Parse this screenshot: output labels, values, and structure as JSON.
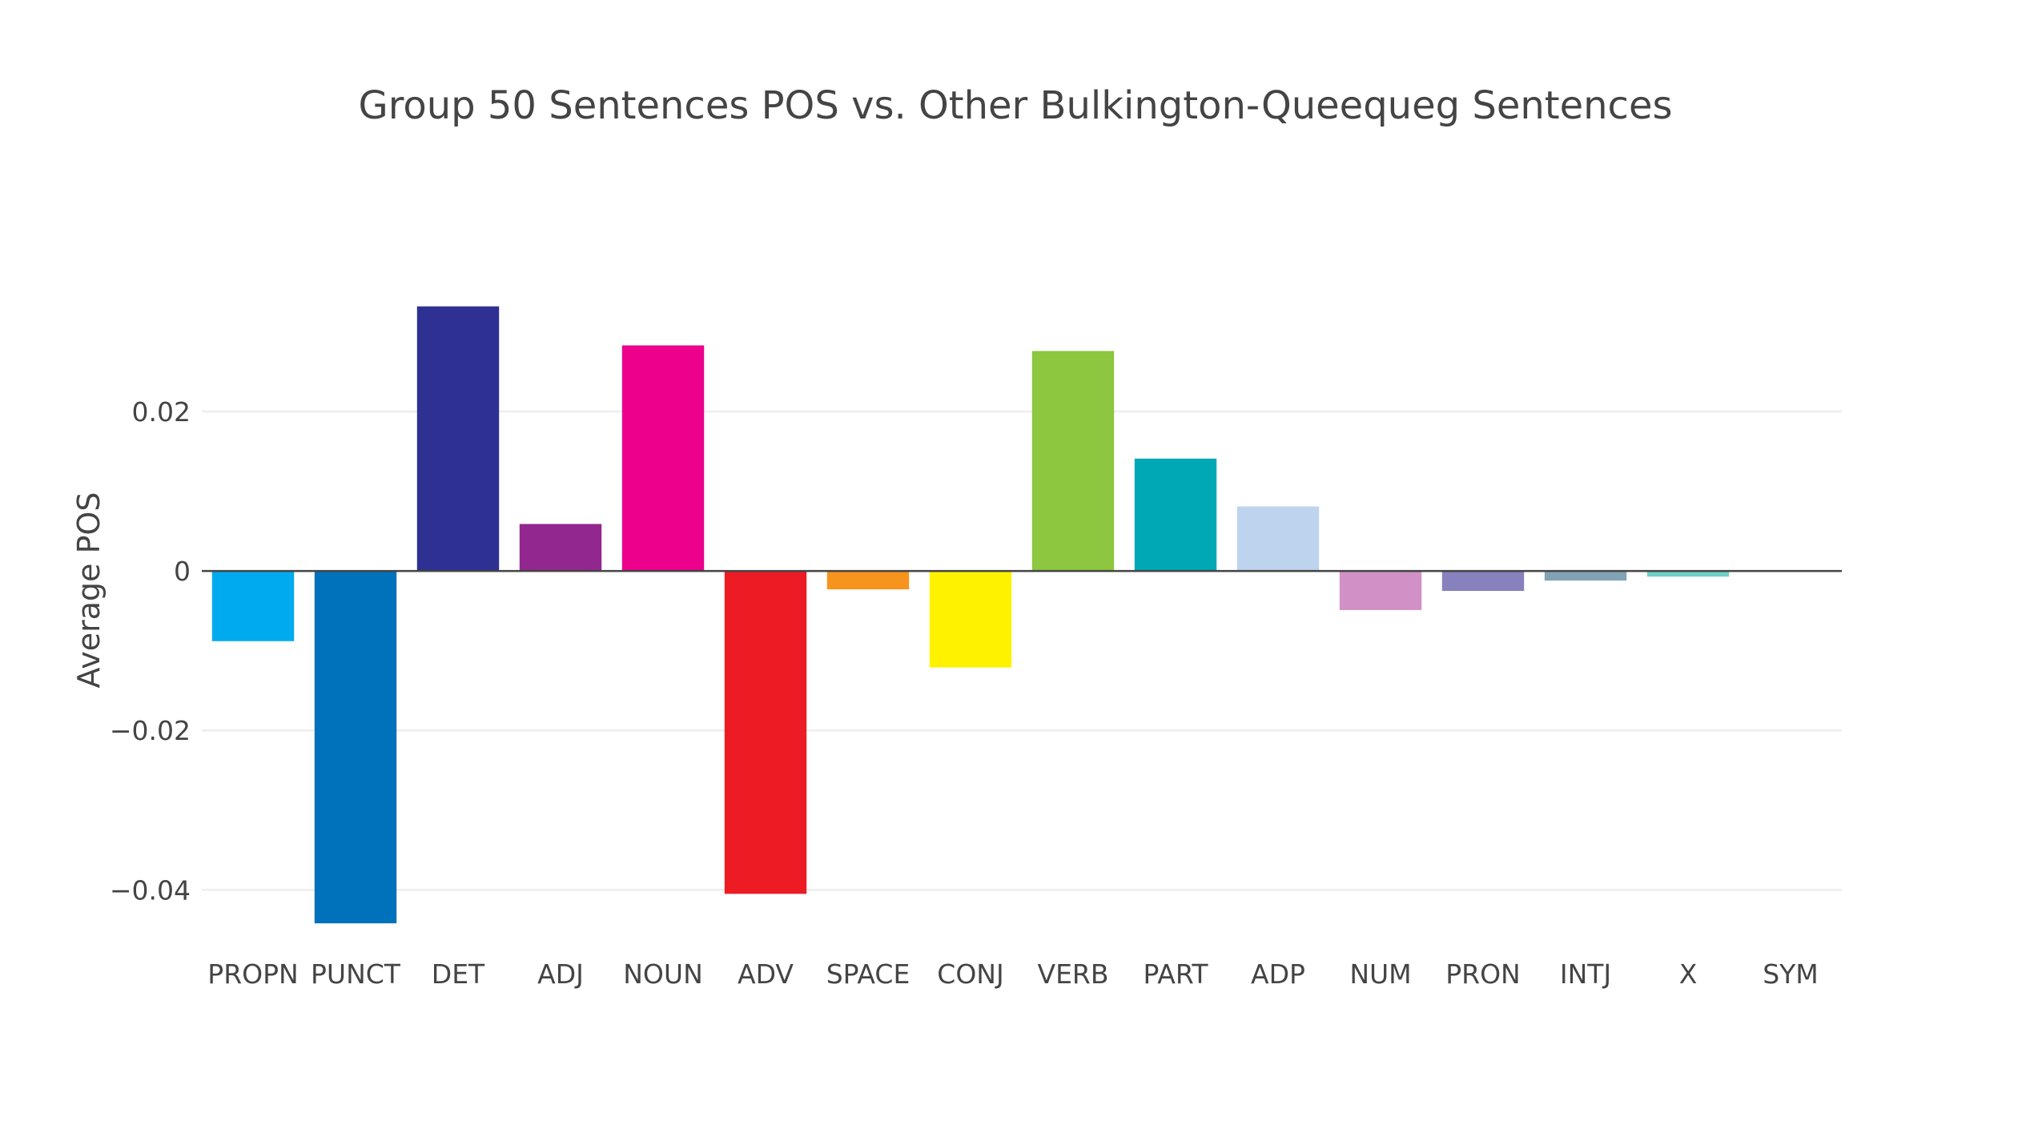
{
  "chart_data": {
    "type": "bar",
    "title": "Group 50 Sentences POS vs. Other Bulkington-Queequeg Sentences",
    "xlabel": "",
    "ylabel": "Average POS",
    "ylim": [
      -0.0475,
      0.0415
    ],
    "yticks": [
      -0.04,
      -0.02,
      0,
      0.02
    ],
    "ytick_labels": [
      "−0.04",
      "−0.02",
      "0",
      "0.02"
    ],
    "grid": true,
    "legend": "none",
    "categories": [
      "PROPN",
      "PUNCT",
      "DET",
      "ADJ",
      "NOUN",
      "ADV",
      "SPACE",
      "CONJ",
      "VERB",
      "PART",
      "ADP",
      "NUM",
      "PRON",
      "INTJ",
      "X",
      "SYM"
    ],
    "values": [
      -0.0088,
      -0.0442,
      0.0332,
      0.0059,
      0.0283,
      -0.0405,
      -0.0023,
      -0.0121,
      0.0276,
      0.0141,
      0.0081,
      -0.0049,
      -0.0025,
      -0.0012,
      -0.0007,
      0.0
    ],
    "colors": [
      "#00aaee",
      "#0072bc",
      "#2e3192",
      "#92278f",
      "#ec008c",
      "#ed1c24",
      "#f7941d",
      "#fff200",
      "#8dc63f",
      "#00a7b5",
      "#bdd3ee",
      "#d191c6",
      "#8781bd",
      "#81a3b5",
      "#6dcfc6",
      "#c9c9c9"
    ]
  }
}
